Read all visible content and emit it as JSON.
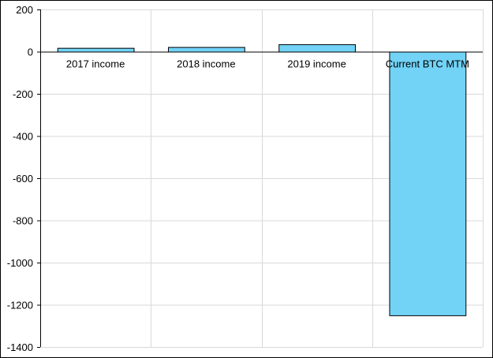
{
  "chart_data": {
    "type": "bar",
    "categories": [
      "2017 income",
      "2018 income",
      "2019 income",
      "Current BTC MTM"
    ],
    "values": [
      18,
      22,
      35,
      -1250
    ],
    "ylim": [
      -1400,
      200
    ],
    "yticks": [
      200,
      0,
      -200,
      -400,
      -600,
      -800,
      -1000,
      -1200,
      -1400
    ],
    "grid": true,
    "legend": "none",
    "bar_color": "#72D3F7",
    "bar_edge_color": "#000000",
    "grid_color": "#D9D9D9"
  }
}
